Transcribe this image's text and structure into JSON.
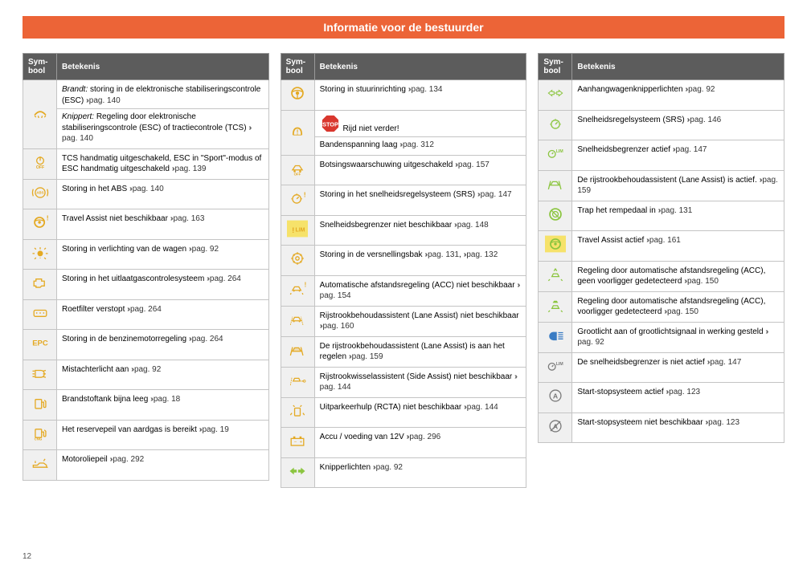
{
  "page_number": "12",
  "banner_title": "Informatie voor de bestuurder",
  "header": {
    "sym": "Sym-\nbool",
    "meaning": "Betekenis"
  },
  "chev": "›››",
  "pag": "pag.",
  "icon_colors": {
    "amber": "#e4a922",
    "green": "#8bc53f",
    "blue": "#3a7cc4",
    "gray": "#7a7a7a",
    "red": "#d9372e",
    "bg_highlight": "#f6e26a"
  },
  "col1": [
    {
      "icon": "esc",
      "color": "amber",
      "rows": [
        {
          "label": "Brandt:",
          "text": "storing in de elektronische stabiliseringscontrole (ESC)",
          "page": "140"
        },
        {
          "label": "Knippert:",
          "text": "Regeling door elektronische stabiliseringscontrole (ESC) of tractiecontrole (TCS)",
          "page": "140"
        }
      ]
    },
    {
      "icon": "off",
      "color": "amber",
      "text": "TCS handmatig uitgeschakeld, ESC in \"Sport\"-modus of ESC handmatig uitgeschakeld",
      "page": "139"
    },
    {
      "icon": "abs",
      "color": "amber",
      "text": "Storing in het ABS",
      "page": "140"
    },
    {
      "icon": "steerwarn",
      "color": "amber",
      "text": "Travel Assist niet beschikbaar",
      "page": "163"
    },
    {
      "icon": "bulb",
      "color": "amber",
      "text": "Storing in verlichting van de wagen",
      "page": "92"
    },
    {
      "icon": "engine",
      "color": "amber",
      "text": "Storing in het uitlaatgascontrolesysteem",
      "page": "264"
    },
    {
      "icon": "dpf",
      "color": "amber",
      "text": "Roetfilter verstopt",
      "page": "264"
    },
    {
      "icon": "epc",
      "color": "amber",
      "text": "Storing in de benzinemotorregeling",
      "page": "264"
    },
    {
      "icon": "fogrear",
      "color": "amber",
      "text": "Mistachterlicht aan",
      "page": "92"
    },
    {
      "icon": "fuel",
      "color": "amber",
      "text": "Brandstoftank bijna leeg",
      "page": "18"
    },
    {
      "icon": "cng",
      "color": "amber",
      "text": "Het reservepeil van aardgas is bereikt",
      "page": "19"
    },
    {
      "icon": "oil",
      "color": "amber",
      "text": "Motoroliepeil",
      "page": "292"
    }
  ],
  "col2": [
    {
      "icon": "steer",
      "color": "amber",
      "text": "Storing in stuurinrichting",
      "page": "134"
    },
    {
      "icon": "tpms",
      "color": "amber",
      "stop": true,
      "text": "Rijd niet verder!",
      "text2": "Bandenspanning laag",
      "page": "312"
    },
    {
      "icon": "fcwoff",
      "color": "amber",
      "text": "Botsingswaarschuwing uitgeschakeld",
      "page": "157"
    },
    {
      "icon": "cruisewarn",
      "color": "amber",
      "text": "Storing in het snelheidsregelsysteem (SRS)",
      "page": "147"
    },
    {
      "icon": "lim",
      "color": "amber",
      "bg": true,
      "text": "Snelheidsbegrenzer niet beschikbaar",
      "page": "148"
    },
    {
      "icon": "gear",
      "color": "amber",
      "text": "Storing in de versnellingsbak",
      "pages": [
        "131",
        "132"
      ]
    },
    {
      "icon": "accwarn",
      "color": "amber",
      "text": "Automatische afstandsregeling (ACC) niet beschikbaar",
      "page": "154"
    },
    {
      "icon": "lanewarn",
      "color": "amber",
      "text": "Rijstrookbehoudassistent (Lane Assist) niet beschikbaar",
      "page": "160"
    },
    {
      "icon": "laneact",
      "color": "amber",
      "text": "De rijstrookbehoudassistent (Lane Assist) is aan het regelen",
      "page": "159"
    },
    {
      "icon": "sideassist",
      "color": "amber",
      "text": "Rijstrookwisselassistent (Side Assist) niet beschikbaar",
      "page": "144"
    },
    {
      "icon": "rcta",
      "color": "amber",
      "text": "Uitparkeerhulp (RCTA) niet beschikbaar",
      "page": "144"
    },
    {
      "icon": "battery",
      "color": "amber",
      "text": "Accu / voeding van 12V",
      "page": "296"
    },
    {
      "icon": "turn",
      "color": "green",
      "text": "Knipperlichten",
      "page": "92"
    }
  ],
  "col3": [
    {
      "icon": "trailer",
      "color": "green",
      "text": "Aanhangwagenknipperlichten",
      "page": "92"
    },
    {
      "icon": "cruise",
      "color": "green",
      "text": "Snelheidsregelsysteem (SRS)",
      "page": "146"
    },
    {
      "icon": "limg",
      "color": "green",
      "text": "Snelheidsbegrenzer actief",
      "page": "147"
    },
    {
      "icon": "laneg",
      "color": "green",
      "text": "De rijstrookbehoudassistent (Lane Assist) is actief.",
      "page": "159"
    },
    {
      "icon": "brake",
      "color": "green",
      "text": "Trap het rempedaal in",
      "page": "131"
    },
    {
      "icon": "taact",
      "color": "green",
      "bg": true,
      "text": "Travel Assist actief",
      "page": "161"
    },
    {
      "icon": "accnov",
      "color": "green",
      "text": "Regeling door automatische afstandsregeling (ACC), geen voorligger gedetecteerd",
      "page": "150"
    },
    {
      "icon": "accv",
      "color": "green",
      "text": "Regeling door automatische afstandsregeling (ACC), voorligger gedetecteerd",
      "page": "150"
    },
    {
      "icon": "highbeam",
      "color": "blue",
      "text": "Grootlicht aan of grootlichtsignaal in werking gesteld",
      "page": "92"
    },
    {
      "icon": "limoff",
      "color": "gray",
      "text": "De snelheidsbegrenzer is niet actief",
      "page": "147"
    },
    {
      "icon": "startstop",
      "color": "gray",
      "text": "Start-stopsysteem actief",
      "page": "123"
    },
    {
      "icon": "startstopoff",
      "color": "gray",
      "text": "Start-stopsysteem niet beschikbaar",
      "page": "123"
    }
  ]
}
